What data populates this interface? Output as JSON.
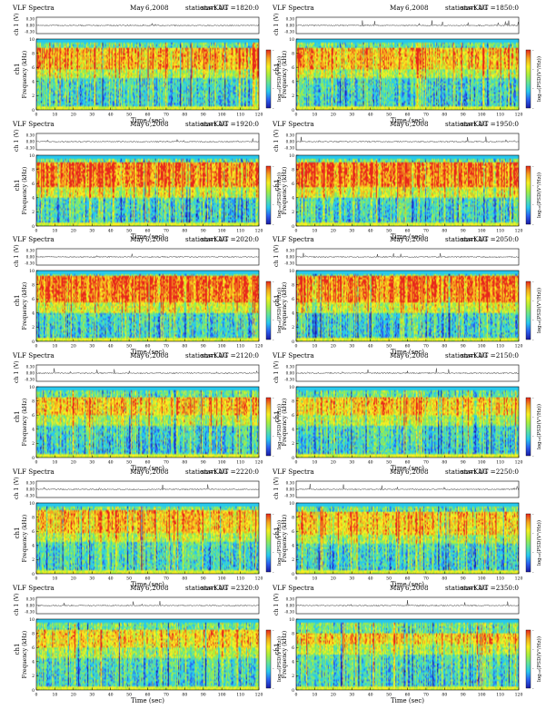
{
  "chart_data": [
    {
      "type": "heatmap",
      "title": "VLF Spectra",
      "month": "May",
      "day": "6",
      "year": ",2008",
      "station": "station=KAG",
      "start_ut": "start UT =1820:0",
      "channel_ylabel": "ch 1 (V)",
      "channel_ticks": [
        "0.30",
        "0.00",
        "-0.30"
      ],
      "ylabel_channel": "ch1",
      "ylabel": "Frequency (kHz)",
      "yticks": [
        "0",
        "2",
        "4",
        "6",
        "8",
        "10"
      ],
      "ylim": [
        0,
        10
      ],
      "xlabel": "Time (sec)",
      "xticks": [
        "0",
        "10",
        "20",
        "30",
        "40",
        "50",
        "60",
        "70",
        "80",
        "90",
        "100",
        "110",
        "120"
      ],
      "xlim": [
        0,
        120
      ],
      "colorbar_label": "log₁₀(PSD(V²/Hz))",
      "colorbar_ticks": [
        "-",
        "-",
        "-",
        "-"
      ],
      "band": {
        "upper_khz": 9.6,
        "red_from_khz": 5.8,
        "red_to_khz": 8.8,
        "strength": 0.62
      },
      "seed": 11
    },
    {
      "type": "heatmap",
      "title": "VLF Spectra",
      "month": "May",
      "day": "6",
      "year": ",2008",
      "station": "station=KAG",
      "start_ut": "start UT =1850:0",
      "channel_ylabel": "ch 1 (V)",
      "channel_ticks": [
        "0.30",
        "0.00",
        "-0.30"
      ],
      "ylabel_channel": "ch1",
      "ylabel": "Frequency (kHz)",
      "yticks": [
        "0",
        "2",
        "4",
        "6",
        "8",
        "10"
      ],
      "ylim": [
        0,
        10
      ],
      "xlabel": "Time (sec)",
      "xticks": [
        "0",
        "10",
        "20",
        "30",
        "40",
        "50",
        "60",
        "70",
        "80",
        "90",
        "100",
        "110",
        "120"
      ],
      "xlim": [
        0,
        120
      ],
      "colorbar_label": "log₁₀(PSD(V²/Hz))",
      "colorbar_ticks": [
        "-",
        "-",
        "-",
        "-"
      ],
      "band": {
        "upper_khz": 9.6,
        "red_from_khz": 5.8,
        "red_to_khz": 8.8,
        "strength": 0.6
      },
      "seed": 23
    },
    {
      "type": "heatmap",
      "title": "VLF Spectra",
      "month": "May",
      "day": "6",
      "year": ",2008",
      "station": "station=KAG",
      "start_ut": "start UT =1920:0",
      "channel_ylabel": "ch 1 (V)",
      "channel_ticks": [
        "0.30",
        "0.00",
        "-0.30"
      ],
      "ylabel_channel": "ch1",
      "ylabel": "Frequency (kHz)",
      "yticks": [
        "0",
        "2",
        "4",
        "6",
        "8",
        "10"
      ],
      "ylim": [
        0,
        10
      ],
      "xlabel": "Time (sec)",
      "xticks": [
        "0",
        "10",
        "20",
        "30",
        "40",
        "50",
        "60",
        "70",
        "80",
        "90",
        "100",
        "110",
        "120"
      ],
      "xlim": [
        0,
        120
      ],
      "colorbar_label": "log₁₀(PSD(V²/Hz))",
      "colorbar_ticks": [
        "-",
        "-",
        "-",
        "-"
      ],
      "band": {
        "upper_khz": 9.6,
        "red_from_khz": 5.5,
        "red_to_khz": 9.0,
        "strength": 0.75
      },
      "seed": 37
    },
    {
      "type": "heatmap",
      "title": "VLF Spectra",
      "month": "May",
      "day": "6",
      "year": ",2008",
      "station": "station=KAG",
      "start_ut": "start UT =1950:0",
      "channel_ylabel": "ch 1 (V)",
      "channel_ticks": [
        "0.30",
        "0.00",
        "-0.30"
      ],
      "ylabel_channel": "ch1",
      "ylabel": "Frequency (kHz)",
      "yticks": [
        "0",
        "2",
        "4",
        "6",
        "8",
        "10"
      ],
      "ylim": [
        0,
        10
      ],
      "xlabel": "Time (sec)",
      "xticks": [
        "0",
        "10",
        "20",
        "30",
        "40",
        "50",
        "60",
        "70",
        "80",
        "90",
        "100",
        "110",
        "120"
      ],
      "xlim": [
        0,
        120
      ],
      "colorbar_label": "log₁₀(PSD(V²/Hz))",
      "colorbar_ticks": [
        "-",
        "-",
        "-",
        "-"
      ],
      "band": {
        "upper_khz": 9.6,
        "red_from_khz": 5.5,
        "red_to_khz": 9.0,
        "strength": 0.75
      },
      "seed": 41
    },
    {
      "type": "heatmap",
      "title": "VLF Spectra",
      "month": "May",
      "day": "6",
      "year": ",2008",
      "station": "station=KAG",
      "start_ut": "start UT =2020:0",
      "channel_ylabel": "ch 1 (V)",
      "channel_ticks": [
        "0.30",
        "0.00",
        "-0.30"
      ],
      "ylabel_channel": "ch1",
      "ylabel": "Frequency (kHz)",
      "yticks": [
        "0",
        "2",
        "4",
        "6",
        "8",
        "10"
      ],
      "ylim": [
        0,
        10
      ],
      "xlabel": "Time (sec)",
      "xticks": [
        "0",
        "10",
        "20",
        "30",
        "40",
        "50",
        "60",
        "70",
        "80",
        "90",
        "100",
        "110",
        "120"
      ],
      "xlim": [
        0,
        120
      ],
      "colorbar_label": "log₁₀(PSD(V²/Hz))",
      "colorbar_ticks": [
        "-",
        "-",
        "-",
        "-"
      ],
      "band": {
        "upper_khz": 9.6,
        "red_from_khz": 5.5,
        "red_to_khz": 9.2,
        "strength": 0.78
      },
      "seed": 53
    },
    {
      "type": "heatmap",
      "title": "VLF Spectra",
      "month": "May",
      "day": "6",
      "year": ",2008",
      "station": "station=KAG",
      "start_ut": "start UT =2050:0",
      "channel_ylabel": "ch 1 (V)",
      "channel_ticks": [
        "0.30",
        "0.00",
        "-0.30"
      ],
      "ylabel_channel": "ch1",
      "ylabel": "Frequency (kHz)",
      "yticks": [
        "0",
        "2",
        "4",
        "6",
        "8",
        "10"
      ],
      "ylim": [
        0,
        10
      ],
      "xlabel": "Time (sec)",
      "xticks": [
        "0",
        "10",
        "20",
        "30",
        "40",
        "50",
        "60",
        "70",
        "80",
        "90",
        "100",
        "110",
        "120"
      ],
      "xlim": [
        0,
        120
      ],
      "colorbar_label": "log₁₀(PSD(V²/Hz))",
      "colorbar_ticks": [
        "-",
        "-",
        "-",
        "-"
      ],
      "band": {
        "upper_khz": 9.6,
        "red_from_khz": 5.5,
        "red_to_khz": 9.2,
        "strength": 0.76
      },
      "seed": 67
    },
    {
      "type": "heatmap",
      "title": "VLF Spectra",
      "month": "May",
      "day": "6",
      "year": ",2008",
      "station": "station=KAG",
      "start_ut": "start UT =2120:0",
      "channel_ylabel": "ch 1 (V)",
      "channel_ticks": [
        "0.30",
        "0.00",
        "-0.30"
      ],
      "ylabel_channel": "ch1",
      "ylabel": "Frequency (kHz)",
      "yticks": [
        "0",
        "2",
        "4",
        "6",
        "8",
        "10"
      ],
      "ylim": [
        0,
        10
      ],
      "xlabel": "Time (sec)",
      "xticks": [
        "0",
        "10",
        "20",
        "30",
        "40",
        "50",
        "60",
        "70",
        "80",
        "90",
        "100",
        "110",
        "120"
      ],
      "xlim": [
        0,
        120
      ],
      "colorbar_label": "log₁₀(PSD(V²/Hz))",
      "colorbar_ticks": [
        "-",
        "-",
        "-",
        "-"
      ],
      "band": {
        "upper_khz": 9.4,
        "red_from_khz": 6.0,
        "red_to_khz": 8.6,
        "strength": 0.58
      },
      "seed": 71
    },
    {
      "type": "heatmap",
      "title": "VLF Spectra",
      "month": "May",
      "day": "6",
      "year": ",2008",
      "station": "station=KAG",
      "start_ut": "start UT =2150:0",
      "channel_ylabel": "ch 1 (V)",
      "channel_ticks": [
        "0.30",
        "0.00",
        "-0.30"
      ],
      "ylabel_channel": "ch1",
      "ylabel": "Frequency (kHz)",
      "yticks": [
        "0",
        "2",
        "4",
        "6",
        "8",
        "10"
      ],
      "ylim": [
        0,
        10
      ],
      "xlabel": "Time (sec)",
      "xticks": [
        "0",
        "10",
        "20",
        "30",
        "40",
        "50",
        "60",
        "70",
        "80",
        "90",
        "100",
        "110",
        "120"
      ],
      "xlim": [
        0,
        120
      ],
      "colorbar_label": "log₁₀(PSD(V²/Hz))",
      "colorbar_ticks": [
        "-",
        "-",
        "-",
        "-"
      ],
      "band": {
        "upper_khz": 9.4,
        "red_from_khz": 6.0,
        "red_to_khz": 8.6,
        "strength": 0.56
      },
      "seed": 83
    },
    {
      "type": "heatmap",
      "title": "VLF Spectra",
      "month": "May",
      "day": "6",
      "year": ",2008",
      "station": "station=KAG",
      "start_ut": "start UT =2220:0",
      "channel_ylabel": "ch 1 (V)",
      "channel_ticks": [
        "0.30",
        "0.00",
        "-0.30"
      ],
      "ylabel_channel": "ch1",
      "ylabel": "Frequency (kHz)",
      "yticks": [
        "0",
        "2",
        "4",
        "6",
        "8",
        "10"
      ],
      "ylim": [
        0,
        10
      ],
      "xlabel": "Time (sec)",
      "xticks": [
        "0",
        "10",
        "20",
        "30",
        "40",
        "50",
        "60",
        "70",
        "80",
        "90",
        "100",
        "110",
        "120"
      ],
      "xlim": [
        0,
        120
      ],
      "colorbar_label": "log₁₀(PSD(V²/Hz))",
      "colorbar_ticks": [
        "-",
        "-",
        "-",
        "-"
      ],
      "band": {
        "upper_khz": 9.5,
        "red_from_khz": 5.8,
        "red_to_khz": 9.0,
        "strength": 0.55
      },
      "seed": 97
    },
    {
      "type": "heatmap",
      "title": "VLF Spectra",
      "month": "May",
      "day": "6",
      "year": ",2008",
      "station": "station=KAG",
      "start_ut": "start UT =2250:0",
      "channel_ylabel": "ch 1 (V)",
      "channel_ticks": [
        "0.30",
        "0.00",
        "-0.30"
      ],
      "ylabel_channel": "ch1",
      "ylabel": "Frequency (kHz)",
      "yticks": [
        "0",
        "2",
        "4",
        "6",
        "8",
        "10"
      ],
      "ylim": [
        0,
        10
      ],
      "xlabel": "Time (sec)",
      "xticks": [
        "0",
        "10",
        "20",
        "30",
        "40",
        "50",
        "60",
        "70",
        "80",
        "90",
        "100",
        "110",
        "120"
      ],
      "xlim": [
        0,
        120
      ],
      "colorbar_label": "log₁₀(PSD(V²/Hz))",
      "colorbar_ticks": [
        "-",
        "-",
        "-",
        "-"
      ],
      "band": {
        "upper_khz": 9.5,
        "red_from_khz": 5.6,
        "red_to_khz": 8.8,
        "strength": 0.55
      },
      "seed": 101
    },
    {
      "type": "heatmap",
      "title": "VLF Spectra",
      "month": "May",
      "day": "6",
      "year": ",2008",
      "station": "station=KAG",
      "start_ut": "start UT =2320:0",
      "channel_ylabel": "ch 1 (V)",
      "channel_ticks": [
        "0.30",
        "0.00",
        "-0.30"
      ],
      "ylabel_channel": "ch1",
      "ylabel": "Frequency (kHz)",
      "yticks": [
        "0",
        "2",
        "4",
        "6",
        "8",
        "10"
      ],
      "ylim": [
        0,
        10
      ],
      "xlabel": "Time (sec)",
      "xticks": [
        "0",
        "10",
        "20",
        "30",
        "40",
        "50",
        "60",
        "70",
        "80",
        "90",
        "100",
        "110",
        "120"
      ],
      "xlim": [
        0,
        120
      ],
      "colorbar_label": "log₁₀(PSD(V²/Hz))",
      "colorbar_ticks": [
        "-",
        "-",
        "-",
        "-"
      ],
      "band": {
        "upper_khz": 9.5,
        "red_from_khz": 6.0,
        "red_to_khz": 8.6,
        "strength": 0.5
      },
      "seed": 113
    },
    {
      "type": "heatmap",
      "title": "VLF Spectra",
      "month": "May",
      "day": "6",
      "year": ",2008",
      "station": "station=KAG",
      "start_ut": "start UT =2350:0",
      "channel_ylabel": "ch 1 (V)",
      "channel_ticks": [
        "0.30",
        "0.00",
        "-0.30"
      ],
      "ylabel_channel": "ch1",
      "ylabel": "Frequency (kHz)",
      "yticks": [
        "0",
        "2",
        "4",
        "6",
        "8",
        "10"
      ],
      "ylim": [
        0,
        10
      ],
      "xlabel": "Time (sec)",
      "xticks": [
        "0",
        "10",
        "20",
        "30",
        "40",
        "50",
        "60",
        "70",
        "80",
        "90",
        "100",
        "110",
        "120"
      ],
      "xlim": [
        0,
        120
      ],
      "colorbar_label": "log₁₀(PSD(V²/Hz))",
      "colorbar_ticks": [
        "-",
        "-",
        "-",
        "-"
      ],
      "band": {
        "upper_khz": 9.5,
        "red_from_khz": 6.4,
        "red_to_khz": 8.0,
        "strength": 0.52
      },
      "seed": 127
    }
  ],
  "colors": {
    "colormap": [
      "#1a1aa6",
      "#2a5ff0",
      "#27c8ee",
      "#5fe39a",
      "#a8ee3e",
      "#f6ef23",
      "#f6a51d",
      "#e8281c"
    ],
    "axis": "#000000",
    "trace": "#222222"
  }
}
